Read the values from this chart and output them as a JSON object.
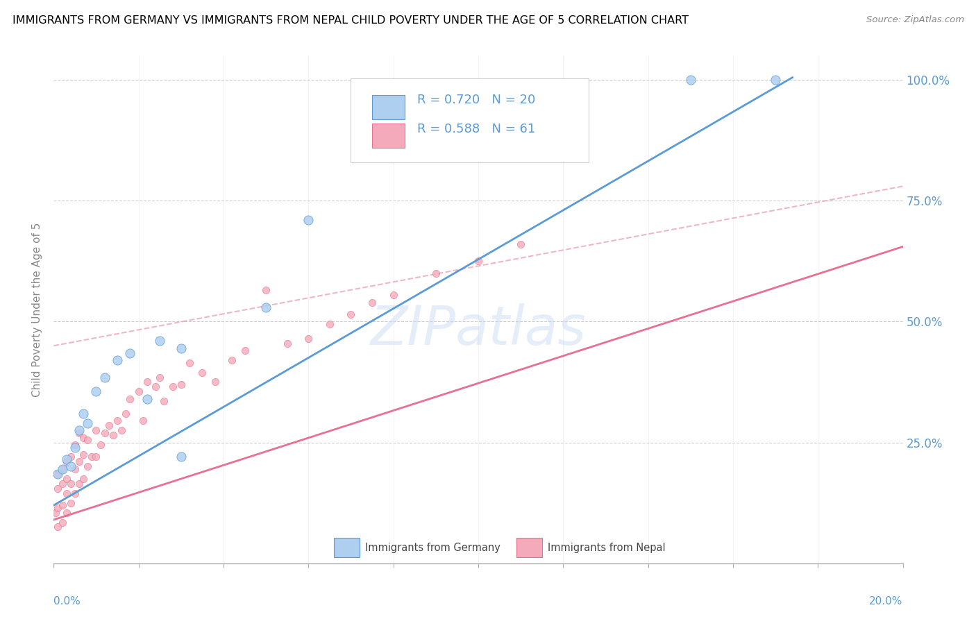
{
  "title": "IMMIGRANTS FROM GERMANY VS IMMIGRANTS FROM NEPAL CHILD POVERTY UNDER THE AGE OF 5 CORRELATION CHART",
  "source": "Source: ZipAtlas.com",
  "ylabel": "Child Poverty Under the Age of 5",
  "legend_label_germany": "Immigrants from Germany",
  "legend_label_nepal": "Immigrants from Nepal",
  "R_germany": 0.72,
  "N_germany": 20,
  "R_nepal": 0.588,
  "N_nepal": 61,
  "color_germany": "#aecff0",
  "color_nepal": "#f5aabb",
  "color_germany_line": "#5b9bd5",
  "color_nepal_line": "#e87090",
  "xmin": 0.0,
  "xmax": 0.2,
  "ymin": 0.0,
  "ymax": 1.05,
  "germany_x": [
    0.001,
    0.002,
    0.003,
    0.004,
    0.005,
    0.006,
    0.007,
    0.008,
    0.01,
    0.012,
    0.015,
    0.018,
    0.022,
    0.025,
    0.03,
    0.03,
    0.05,
    0.06,
    0.15,
    0.17
  ],
  "germany_y": [
    0.185,
    0.195,
    0.215,
    0.2,
    0.24,
    0.275,
    0.31,
    0.29,
    0.355,
    0.385,
    0.42,
    0.435,
    0.34,
    0.46,
    0.22,
    0.445,
    0.53,
    0.71,
    1.0,
    1.0
  ],
  "nepal_x": [
    0.0005,
    0.001,
    0.001,
    0.001,
    0.001,
    0.002,
    0.002,
    0.002,
    0.002,
    0.003,
    0.003,
    0.003,
    0.003,
    0.004,
    0.004,
    0.004,
    0.005,
    0.005,
    0.005,
    0.006,
    0.006,
    0.006,
    0.007,
    0.007,
    0.007,
    0.008,
    0.008,
    0.009,
    0.01,
    0.01,
    0.011,
    0.012,
    0.013,
    0.014,
    0.015,
    0.016,
    0.017,
    0.018,
    0.02,
    0.021,
    0.022,
    0.024,
    0.025,
    0.026,
    0.028,
    0.03,
    0.032,
    0.035,
    0.038,
    0.042,
    0.045,
    0.05,
    0.055,
    0.06,
    0.065,
    0.07,
    0.075,
    0.08,
    0.09,
    0.1,
    0.11
  ],
  "nepal_y": [
    0.105,
    0.075,
    0.115,
    0.155,
    0.185,
    0.085,
    0.12,
    0.165,
    0.195,
    0.105,
    0.145,
    0.175,
    0.21,
    0.125,
    0.165,
    0.22,
    0.145,
    0.195,
    0.245,
    0.165,
    0.21,
    0.27,
    0.175,
    0.225,
    0.26,
    0.2,
    0.255,
    0.22,
    0.22,
    0.275,
    0.245,
    0.27,
    0.285,
    0.265,
    0.295,
    0.275,
    0.31,
    0.34,
    0.355,
    0.295,
    0.375,
    0.365,
    0.385,
    0.335,
    0.365,
    0.37,
    0.415,
    0.395,
    0.375,
    0.42,
    0.44,
    0.565,
    0.455,
    0.465,
    0.495,
    0.515,
    0.54,
    0.555,
    0.6,
    0.625,
    0.66
  ],
  "germany_line_x": [
    0.0,
    0.174
  ],
  "germany_line_y": [
    0.12,
    1.005
  ],
  "nepal_line_x": [
    0.0,
    0.2
  ],
  "nepal_line_y": [
    0.09,
    0.655
  ],
  "dashed_line_x": [
    0.0,
    0.2
  ],
  "dashed_line_y": [
    0.45,
    0.78
  ],
  "watermark": "ZIPatlas"
}
